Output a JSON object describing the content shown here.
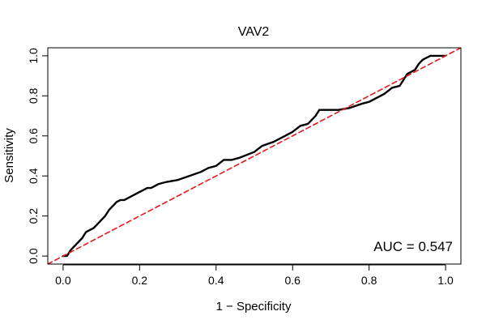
{
  "chart_data": {
    "type": "line",
    "title": "VAV2",
    "xlabel": "1 − Specificity",
    "ylabel": "Sensitivity",
    "xlim": [
      -0.04,
      1.04
    ],
    "ylim": [
      -0.04,
      1.04
    ],
    "x_ticks": [
      0.0,
      0.2,
      0.4,
      0.6,
      0.8,
      1.0
    ],
    "y_ticks": [
      0.0,
      0.2,
      0.4,
      0.6,
      0.8,
      1.0
    ],
    "x_tick_labels": [
      "0.0",
      "0.2",
      "0.4",
      "0.6",
      "0.8",
      "1.0"
    ],
    "y_tick_labels": [
      "0.0",
      "0.2",
      "0.4",
      "0.6",
      "0.8",
      "1.0"
    ],
    "grid": false,
    "legend": "none",
    "series": [
      {
        "color": "#000000",
        "style": "solid",
        "x": [
          0.0,
          0.01,
          0.02,
          0.03,
          0.04,
          0.05,
          0.06,
          0.07,
          0.08,
          0.09,
          0.1,
          0.11,
          0.12,
          0.13,
          0.14,
          0.15,
          0.16,
          0.17,
          0.18,
          0.19,
          0.2,
          0.21,
          0.22,
          0.23,
          0.25,
          0.27,
          0.3,
          0.33,
          0.36,
          0.38,
          0.4,
          0.42,
          0.44,
          0.46,
          0.5,
          0.52,
          0.55,
          0.58,
          0.6,
          0.62,
          0.64,
          0.66,
          0.67,
          0.7,
          0.72,
          0.75,
          0.78,
          0.8,
          0.82,
          0.84,
          0.86,
          0.88,
          0.89,
          0.9,
          0.92,
          0.93,
          0.94,
          0.96,
          1.0
        ],
        "y": [
          0.0,
          0.0,
          0.03,
          0.05,
          0.07,
          0.09,
          0.12,
          0.13,
          0.14,
          0.16,
          0.18,
          0.2,
          0.23,
          0.25,
          0.27,
          0.28,
          0.28,
          0.29,
          0.3,
          0.31,
          0.32,
          0.33,
          0.34,
          0.34,
          0.36,
          0.37,
          0.38,
          0.4,
          0.42,
          0.44,
          0.45,
          0.48,
          0.48,
          0.49,
          0.52,
          0.55,
          0.57,
          0.6,
          0.62,
          0.65,
          0.66,
          0.7,
          0.73,
          0.73,
          0.73,
          0.74,
          0.76,
          0.77,
          0.79,
          0.81,
          0.84,
          0.85,
          0.88,
          0.91,
          0.93,
          0.96,
          0.98,
          1.0,
          1.0
        ]
      },
      {
        "color": "#e41a1c",
        "style": "dashed",
        "x": [
          -0.04,
          1.04
        ],
        "y": [
          -0.04,
          1.04
        ]
      }
    ],
    "annotation": "AUC = 0.547"
  }
}
